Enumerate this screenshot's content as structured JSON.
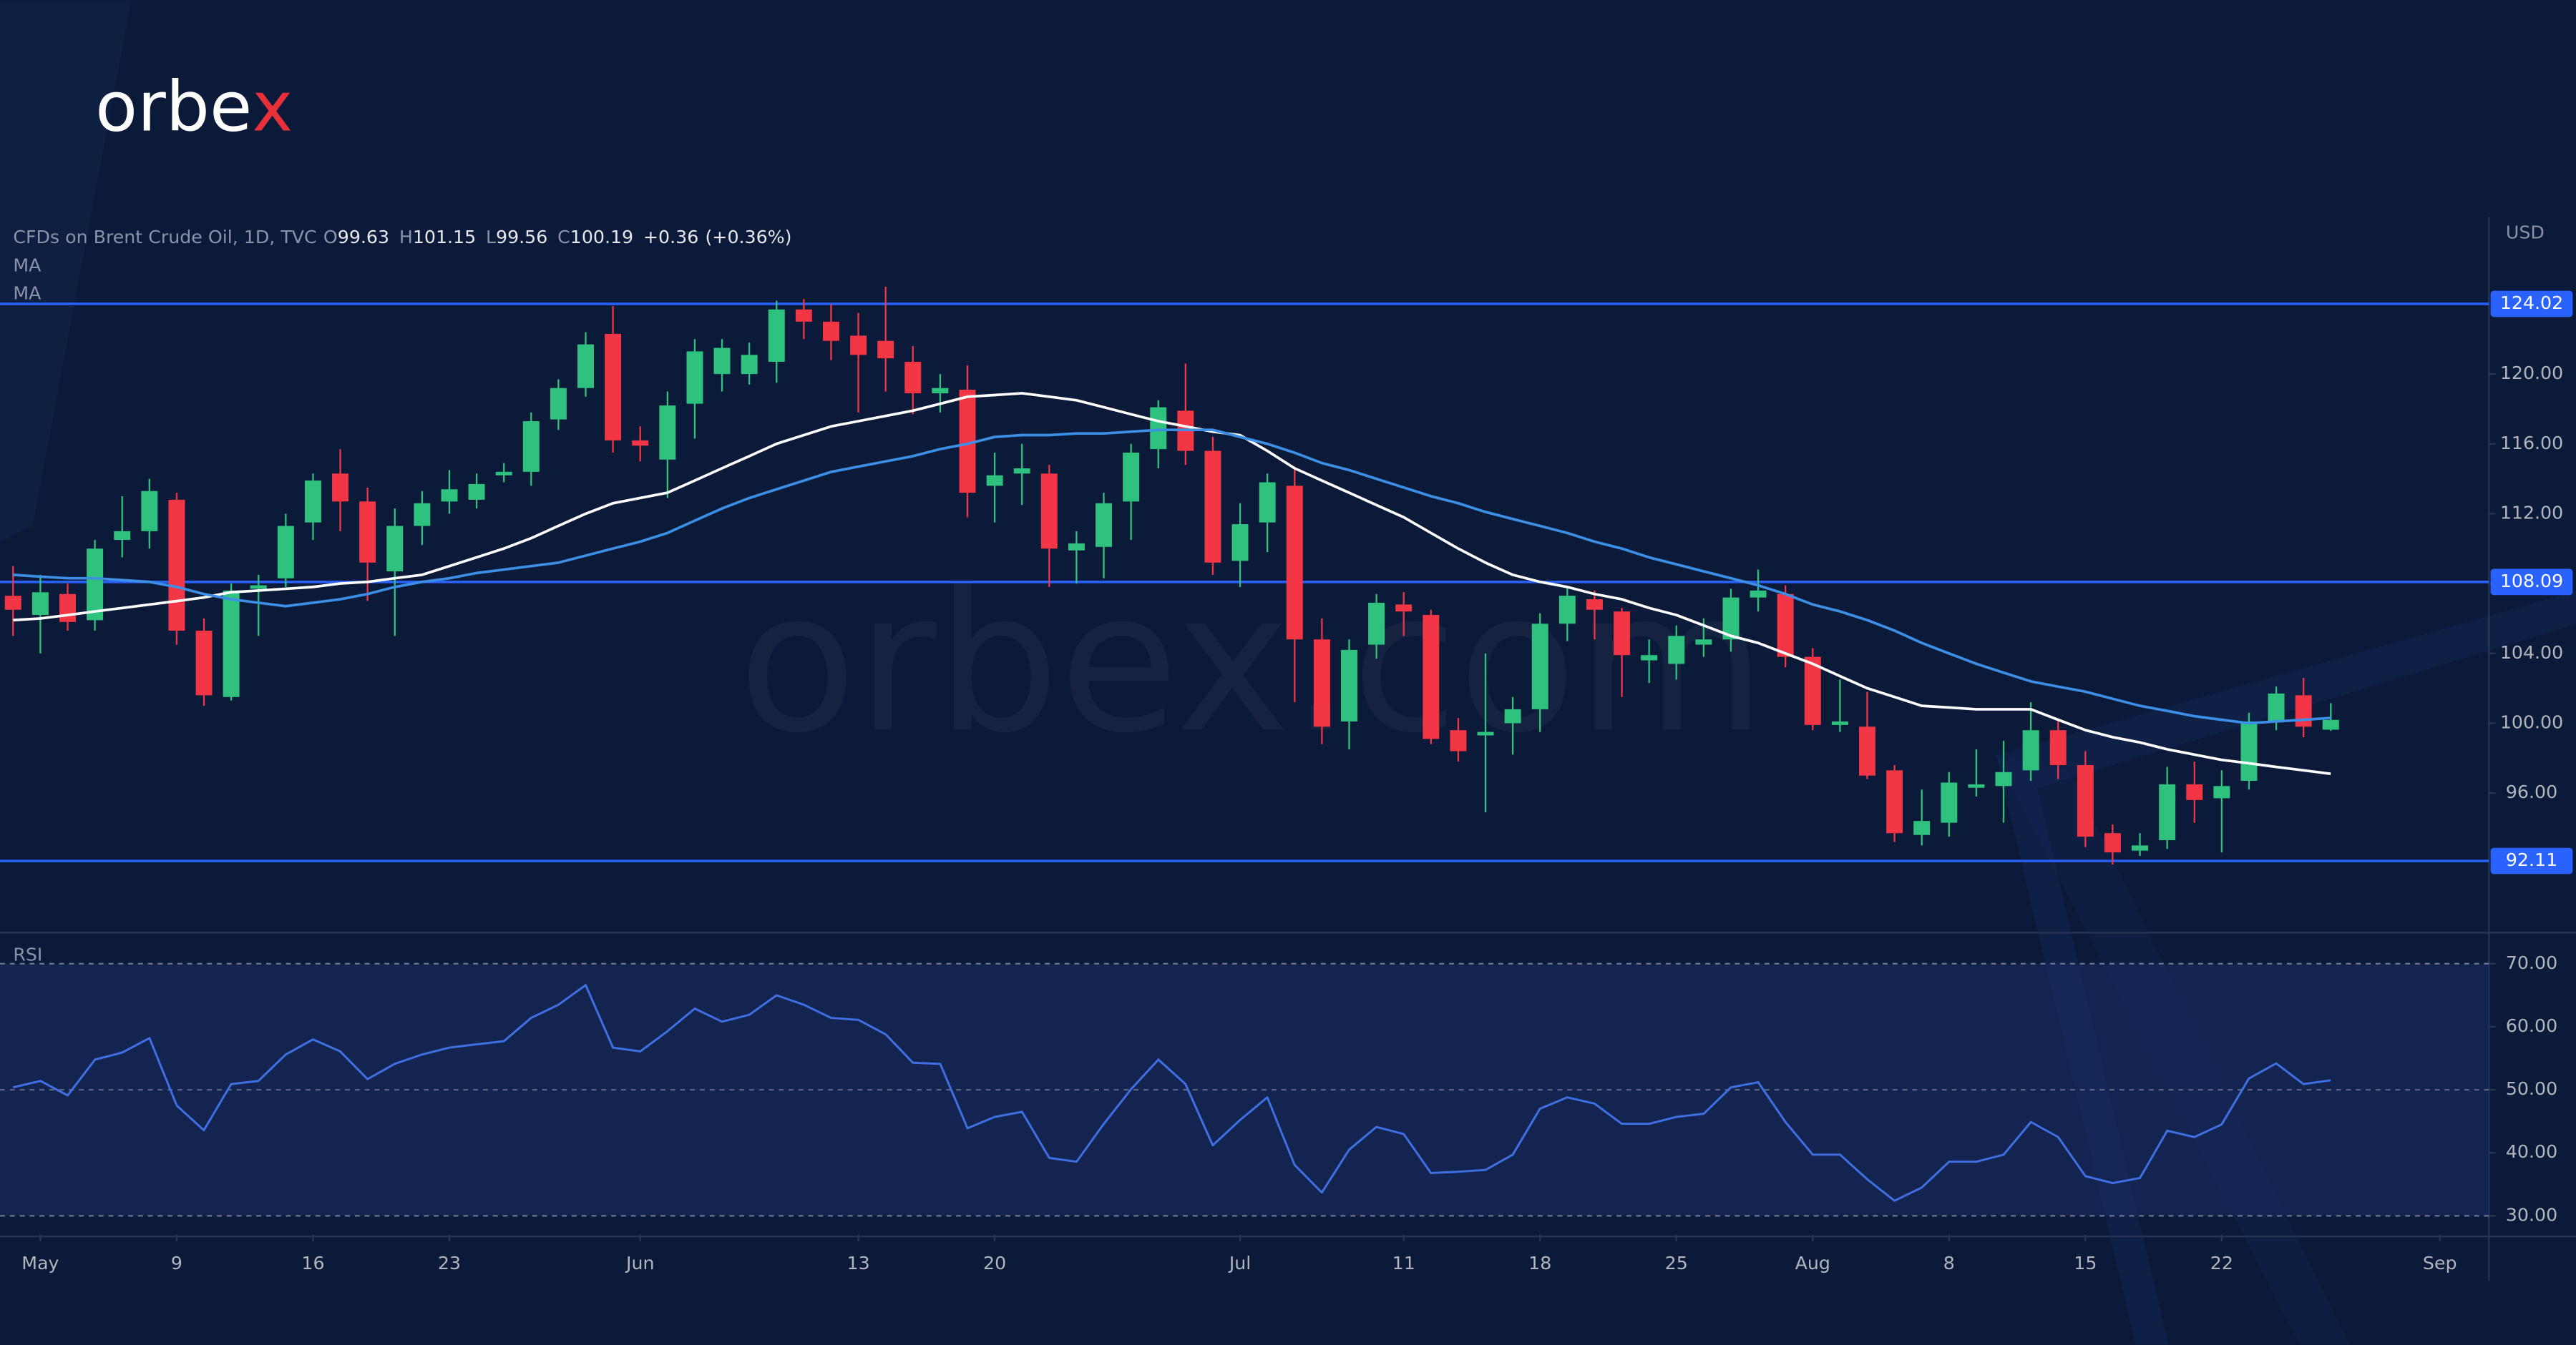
{
  "logo": {
    "text": "orbe",
    "accent": "x"
  },
  "watermark": "orbex.com",
  "chart_data": {
    "type": "candlestick",
    "title": "CFDs on Brent Crude Oil, 1D, TVC",
    "ohlc_legend": [
      {
        "key": "O",
        "value": 99.63
      },
      {
        "key": "H",
        "value": 101.15
      },
      {
        "key": "L",
        "value": 99.56
      },
      {
        "key": "C",
        "value": 100.19
      }
    ],
    "change": {
      "value": 0.36,
      "label": "+0.36"
    },
    "change_pct": {
      "value": 0.36,
      "label": "(+0.36%)"
    },
    "unit": "USD",
    "up_color": "#2ec27e",
    "down_color": "#f23645",
    "open": [
      107.3,
      106.2,
      107.4,
      105.9,
      110.5,
      111,
      112.8,
      105.3,
      101.5,
      107.7,
      108.3,
      111.5,
      114.3,
      112.7,
      108.7,
      111.3,
      112.7,
      112.8,
      114.2,
      114.4,
      117.4,
      119.2,
      122.3,
      116.2,
      115.1,
      118.3,
      120,
      120,
      120.7,
      123.7,
      123,
      122.2,
      121.9,
      120.7,
      118.9,
      119.1,
      113.6,
      114.3,
      114.3,
      109.9,
      110.1,
      112.7,
      115.7,
      117.9,
      115.6,
      109.3,
      111.5,
      113.6,
      104.8,
      100.1,
      104.5,
      106.8,
      106.2,
      99.6,
      99.3,
      100,
      100.8,
      105.7,
      107.1,
      106.4,
      103.6,
      103.4,
      104.5,
      104.8,
      107.2,
      107.4,
      103.8,
      99.9,
      99.8,
      97.3,
      93.6,
      94.3,
      96.3,
      96.4,
      97.3,
      99.6,
      97.6,
      93.7,
      92.7,
      93.3,
      96.5,
      95.7,
      96.7,
      100.1,
      101.6,
      99.63
    ],
    "high": [
      109,
      108.5,
      108,
      110.5,
      113,
      114,
      113.2,
      106,
      108,
      108.5,
      112,
      114.3,
      115.7,
      113.5,
      112.3,
      113.3,
      114.5,
      114.3,
      114.9,
      117.8,
      119.7,
      122.4,
      123.9,
      117,
      119,
      122,
      122,
      121.8,
      124.2,
      124.3,
      124,
      123.5,
      125,
      121.6,
      120,
      120.5,
      115.5,
      116,
      114.8,
      111,
      113.2,
      116,
      118.5,
      120.6,
      116.4,
      112.6,
      114.3,
      114.7,
      106,
      104.8,
      107.4,
      107.5,
      106.5,
      100.3,
      104,
      101.5,
      106.3,
      107.8,
      107.6,
      106.6,
      104.8,
      105.6,
      106,
      107.7,
      108.8,
      107.9,
      104.3,
      102.5,
      101.8,
      97.6,
      96.2,
      97.2,
      98.5,
      99,
      101.2,
      100.1,
      98.4,
      94.2,
      93.7,
      97.5,
      97.8,
      97.3,
      100.6,
      102.1,
      102.6,
      101.15
    ],
    "low": [
      105,
      104,
      105.3,
      105.3,
      109.5,
      110,
      104.5,
      101,
      101.3,
      105,
      107.8,
      110.5,
      111,
      107,
      105,
      110.2,
      112,
      112.3,
      113.8,
      113.6,
      116.8,
      118.7,
      115.5,
      115,
      112.9,
      116.3,
      119,
      119.4,
      119.5,
      122,
      120.8,
      117.8,
      119,
      117.7,
      117.8,
      111.8,
      111.5,
      112.5,
      107.8,
      108,
      108.3,
      110.5,
      114.6,
      114.8,
      108.5,
      107.8,
      109.8,
      101.2,
      98.8,
      98.5,
      103.7,
      105,
      98.8,
      97.8,
      94.9,
      98.2,
      99.5,
      104.7,
      104.8,
      101.5,
      102.3,
      102.5,
      103.8,
      104.1,
      106.4,
      103.2,
      99.6,
      99.5,
      96.8,
      93.2,
      93,
      93.5,
      95.8,
      94.3,
      96.7,
      96.8,
      92.9,
      91.9,
      92.4,
      92.8,
      94.3,
      92.6,
      96.2,
      99.6,
      99.2,
      99.56
    ],
    "close": [
      106.5,
      107.5,
      105.8,
      110,
      111,
      113.3,
      105.3,
      101.6,
      107.6,
      107.9,
      111.3,
      113.9,
      112.7,
      109.2,
      111.3,
      112.6,
      113.4,
      113.7,
      114.4,
      117.3,
      119.2,
      121.7,
      116.2,
      115.9,
      118.2,
      121.3,
      121.5,
      121.1,
      123.7,
      123,
      121.9,
      121.1,
      120.9,
      118.9,
      119.2,
      113.2,
      114.2,
      114.6,
      110,
      110.3,
      112.6,
      115.5,
      118.1,
      115.6,
      109.2,
      111.4,
      113.8,
      104.8,
      99.8,
      104.2,
      106.9,
      106.4,
      99.1,
      98.4,
      99.5,
      100.8,
      105.7,
      107.3,
      106.5,
      103.9,
      103.9,
      105,
      104.8,
      107.2,
      107.6,
      103.8,
      99.9,
      100.1,
      97,
      93.7,
      94.4,
      96.6,
      96.5,
      97.2,
      99.6,
      97.6,
      93.5,
      92.6,
      93,
      96.5,
      95.6,
      96.4,
      100.1,
      101.7,
      99.8,
      100.19
    ],
    "series": [
      {
        "name": "MA",
        "color": "#ffffff",
        "values": [
          105.9,
          106.0,
          106.2,
          106.4,
          106.6,
          106.8,
          107.0,
          107.2,
          107.5,
          107.6,
          107.7,
          107.8,
          108.0,
          108.1,
          108.3,
          108.5,
          109.0,
          109.5,
          110.0,
          110.6,
          111.3,
          112.0,
          112.6,
          112.9,
          113.2,
          113.9,
          114.6,
          115.3,
          116.0,
          116.5,
          117.0,
          117.3,
          117.6,
          117.9,
          118.3,
          118.7,
          118.8,
          118.9,
          118.7,
          118.5,
          118.1,
          117.7,
          117.3,
          117.0,
          116.7,
          116.5,
          115.6,
          114.6,
          113.9,
          113.2,
          112.5,
          111.8,
          110.9,
          110.0,
          109.2,
          108.5,
          108.1,
          107.8,
          107.4,
          107.1,
          106.6,
          106.2,
          105.6,
          105.0,
          104.6,
          104.0,
          103.4,
          102.7,
          102.0,
          101.5,
          101.0,
          100.9,
          100.8,
          100.8,
          100.8,
          100.2,
          99.6,
          99.2,
          98.9,
          98.5,
          98.2,
          97.9,
          97.7,
          97.5,
          97.3,
          97.1
        ]
      },
      {
        "name": "MA",
        "color": "#3d8fe6",
        "values": [
          108.5,
          108.4,
          108.3,
          108.3,
          108.2,
          108.1,
          107.8,
          107.4,
          107.1,
          106.9,
          106.7,
          106.9,
          107.1,
          107.4,
          107.8,
          108.1,
          108.3,
          108.6,
          108.8,
          109.0,
          109.2,
          109.6,
          110.0,
          110.4,
          110.9,
          111.6,
          112.3,
          112.9,
          113.4,
          113.9,
          114.4,
          114.7,
          115.0,
          115.3,
          115.7,
          116.0,
          116.4,
          116.5,
          116.5,
          116.6,
          116.6,
          116.7,
          116.8,
          116.8,
          116.8,
          116.4,
          116.0,
          115.5,
          114.9,
          114.5,
          114.0,
          113.5,
          113.0,
          112.6,
          112.1,
          111.7,
          111.3,
          110.9,
          110.4,
          110.0,
          109.5,
          109.1,
          108.7,
          108.3,
          107.9,
          107.4,
          106.8,
          106.4,
          105.9,
          105.3,
          104.6,
          104.0,
          103.4,
          102.9,
          102.4,
          102.1,
          101.8,
          101.4,
          101.0,
          100.7,
          100.4,
          100.2,
          100.0,
          100.1,
          100.2,
          100.3
        ]
      }
    ],
    "levels": [
      124.02,
      108.09,
      92.11
    ],
    "level_color": "#2962ff",
    "ylim": [
      88,
      129
    ],
    "yticks": [
      {
        "value": 96,
        "label": "96.00"
      },
      {
        "value": 100,
        "label": "100.00"
      },
      {
        "value": 104,
        "label": "104.00"
      },
      {
        "value": 108,
        "label": "108.00"
      },
      {
        "value": 112,
        "label": "112.00"
      },
      {
        "value": 116,
        "label": "116.00"
      },
      {
        "value": 120,
        "label": "120.00"
      }
    ],
    "xlim": [
      -0.48,
      90.8
    ],
    "xticks": [
      {
        "value": 1,
        "label": "May"
      },
      {
        "value": 6,
        "label": "9"
      },
      {
        "value": 11,
        "label": "16"
      },
      {
        "value": 16,
        "label": "23"
      },
      {
        "value": 23,
        "label": "Jun"
      },
      {
        "value": 31,
        "label": "13"
      },
      {
        "value": 36,
        "label": "20"
      },
      {
        "value": 45,
        "label": "Jul"
      },
      {
        "value": 51,
        "label": "11"
      },
      {
        "value": 56,
        "label": "18"
      },
      {
        "value": 61,
        "label": "25"
      },
      {
        "value": 66,
        "label": "Aug"
      },
      {
        "value": 71,
        "label": "8"
      },
      {
        "value": 76,
        "label": "15"
      },
      {
        "value": 81,
        "label": "22"
      },
      {
        "value": 89,
        "label": "Sep"
      }
    ],
    "rsi": {
      "type": "line",
      "name": "RSI",
      "color": "#3f6fe0",
      "values": [
        50.4,
        51.4,
        49.1,
        54.8,
        55.9,
        58.2,
        47.5,
        43.6,
        50.9,
        51.4,
        55.6,
        58,
        56.1,
        51.7,
        54.1,
        55.6,
        56.7,
        57.2,
        57.7,
        61.4,
        63.5,
        66.6,
        56.7,
        56.1,
        59.3,
        62.9,
        60.8,
        61.9,
        65,
        63.5,
        61.4,
        61.1,
        58.8,
        54.3,
        54.1,
        43.9,
        45.7,
        46.5,
        39.2,
        38.6,
        44.6,
        50.1,
        54.8,
        50.9,
        41.2,
        45.2,
        48.8,
        38.1,
        33.7,
        40.5,
        44.1,
        43,
        36.8,
        37,
        37.3,
        39.7,
        47,
        48.8,
        47.8,
        44.6,
        44.6,
        45.7,
        46.2,
        50.4,
        51.2,
        44.9,
        39.7,
        39.7,
        35.8,
        32.4,
        34.5,
        38.6,
        38.6,
        39.7,
        44.9,
        42.5,
        36.3,
        35.2,
        36,
        43.5,
        42.5,
        44.5,
        51.8,
        54.2,
        50.9,
        51.5
      ],
      "ylim": [
        27,
        74.4
      ],
      "yticks": [
        {
          "value": 30,
          "label": "30.00"
        },
        {
          "value": 40,
          "label": "40.00"
        },
        {
          "value": 50,
          "label": "50.00"
        },
        {
          "value": 60,
          "label": "60.00"
        },
        {
          "value": 70,
          "label": "70.00"
        }
      ],
      "band": [
        70,
        30
      ],
      "midline": 50
    }
  }
}
